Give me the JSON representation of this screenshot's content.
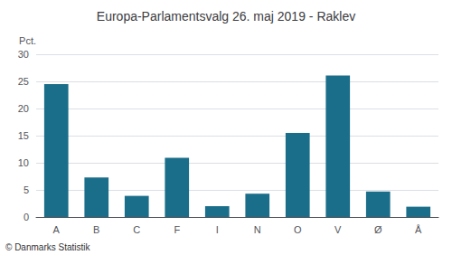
{
  "chart_data": {
    "type": "bar",
    "title": "Europa-Parlamentsvalg 26. maj 2019 - Raklev",
    "categories": [
      "A",
      "B",
      "C",
      "F",
      "I",
      "N",
      "O",
      "V",
      "Ø",
      "Å"
    ],
    "values": [
      24.5,
      7.3,
      3.9,
      10.9,
      2.0,
      4.3,
      15.5,
      26.1,
      4.7,
      1.9
    ],
    "color": "#1a6e8a",
    "ylabel": "Pct.",
    "ylim": [
      0,
      30
    ],
    "yticks": [
      0,
      5,
      10,
      15,
      20,
      25,
      30
    ],
    "grid": true,
    "annotations": [
      "© Danmarks Statistik"
    ]
  }
}
